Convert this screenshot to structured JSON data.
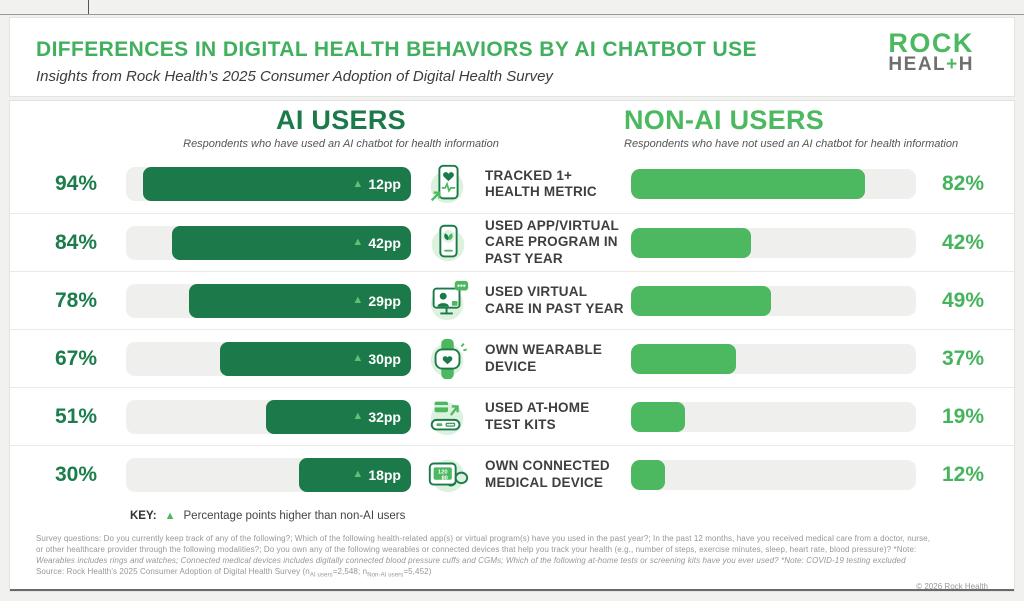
{
  "header": {
    "title": "DIFFERENCES IN DIGITAL HEALTH BEHAVIORS BY AI CHATBOT USE",
    "subtitle": "Insights from Rock Health’s 2025 Consumer Adoption of Digital Health Survey",
    "logo": {
      "line1": "ROCK",
      "line2_pre": "HEAL",
      "plus": "+",
      "line2_post": "H"
    }
  },
  "columns": {
    "ai": {
      "title": "AI USERS",
      "subtitle": "Respondents who have used an AI chatbot for health information"
    },
    "nonai": {
      "title": "NON-AI USERS",
      "subtitle": "Respondents who have not used an AI chatbot for health information"
    }
  },
  "rows": [
    {
      "label": "TRACKED 1+ HEALTH METRIC",
      "ai_pct": "94%",
      "ai_value": 94,
      "diff": "12pp",
      "non_pct": "82%",
      "non_value": 82
    },
    {
      "label": "USED APP/VIRTUAL CARE PROGRAM IN PAST YEAR",
      "ai_pct": "84%",
      "ai_value": 84,
      "diff": "42pp",
      "non_pct": "42%",
      "non_value": 42
    },
    {
      "label": "USED VIRTUAL CARE IN PAST YEAR",
      "ai_pct": "78%",
      "ai_value": 78,
      "diff": "29pp",
      "non_pct": "49%",
      "non_value": 49
    },
    {
      "label": "OWN WEARABLE DEVICE",
      "ai_pct": "67%",
      "ai_value": 67,
      "diff": "30pp",
      "non_pct": "37%",
      "non_value": 37
    },
    {
      "label": "USED AT-HOME TEST KITS",
      "ai_pct": "51%",
      "ai_value": 51,
      "diff": "32pp",
      "non_pct": "19%",
      "non_value": 19
    },
    {
      "label": "OWN CONNECTED MEDICAL DEVICE",
      "ai_pct": "30%",
      "ai_value": 30,
      "diff": "18pp",
      "non_pct": "12%",
      "non_value": 12,
      "icon_text_top": "120",
      "icon_text_bottom": "80"
    }
  ],
  "key": {
    "label": "KEY:",
    "triangle": "▲",
    "text": "Percentage points higher than non-AI users"
  },
  "footer": {
    "line1": "Survey questions: Do you currently keep track of any of the following?; Which of the following health-related app(s) or virtual program(s) have you used in the past year?; In the past 12 months, have you received medical care from a doctor, nurse,",
    "line2": "or other healthcare provider through the following modalities?; Do you own any of the following wearables or connected devices that help you track your health (e.g., number of steps, exercise minutes, sleep, heart rate, blood pressure)? *Note:",
    "line3": "Wearables includes rings and watches; Connected medical devices includes digitally connected blood pressure cuffs and CGMs; Which of the following at-home tests or screening kits have you ever used? *Note: COVID-19 testing excluded",
    "source_parts": {
      "p1": "Source: Rock Health’s 2025 Consumer Adoption of Digital Health Survey (n",
      "s1": "AI users",
      "p2": "=2,548; n",
      "s2": "Non-AI users",
      "p3": "=5,452)"
    },
    "copyright": "© 2026 Rock Health"
  },
  "colors": {
    "ai_dark_green": "#1c7a4a",
    "nonai_light_green": "#4cb85f",
    "title_green": "#41b05e",
    "badge_triangle": "#5cc371",
    "track_gray": "#efefed",
    "logo_gray": "#6f6f6f"
  },
  "chart_data": {
    "type": "bar",
    "title": "Differences in Digital Health Behaviors by AI Chatbot Use",
    "subtitle": "Insights from Rock Health's 2025 Consumer Adoption of Digital Health Survey",
    "categories": [
      "Tracked 1+ health metric",
      "Used app/virtual care program in past year",
      "Used virtual care in past year",
      "Own wearable device",
      "Used at-home test kits",
      "Own connected medical device"
    ],
    "series": [
      {
        "name": "AI users",
        "values": [
          94,
          84,
          78,
          67,
          51,
          30
        ]
      },
      {
        "name": "Non-AI users",
        "values": [
          82,
          42,
          49,
          37,
          19,
          12
        ]
      }
    ],
    "difference_pp": [
      12,
      42,
      29,
      30,
      32,
      18
    ],
    "unit": "%",
    "xlim": [
      0,
      100
    ],
    "legend": "Triangle = percentage points higher than non-AI users",
    "sample_sizes": {
      "AI users": "2,548",
      "Non-AI users": "5,452"
    }
  }
}
